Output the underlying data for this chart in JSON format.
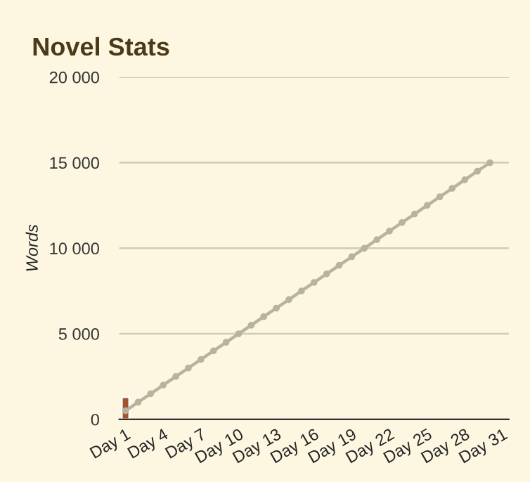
{
  "chart_data": {
    "type": "bar",
    "title": "Novel Stats",
    "ylabel": "Words",
    "categories": [
      "Day 1",
      null,
      null,
      "Day 4",
      null,
      null,
      "Day 7",
      null,
      null,
      "Day 10",
      null,
      null,
      "Day 13",
      null,
      null,
      "Day 16",
      null,
      null,
      "Day 19",
      null,
      null,
      "Day 22",
      null,
      null,
      "Day 25",
      null,
      null,
      "Day 28",
      null,
      null,
      "Day 31"
    ],
    "series": [
      {
        "color": "#a5532a",
        "values": [
          1300,
          null,
          null,
          null,
          null,
          null,
          null,
          null,
          null,
          null,
          null,
          null,
          null,
          null,
          null,
          null,
          null,
          null,
          null,
          null,
          null,
          null,
          null,
          null,
          null,
          null,
          null,
          null,
          null,
          null,
          null
        ]
      },
      {
        "type": "line",
        "color": "#b7b49c",
        "marker": "circle",
        "line_style": "solid",
        "values": [
          500,
          1000,
          1500,
          2000,
          2500,
          3000,
          3500,
          4000,
          4500,
          5000,
          5500,
          6000,
          6500,
          7000,
          7500,
          8000,
          8500,
          9000,
          9500,
          10000,
          10500,
          11000,
          11500,
          12000,
          12500,
          13000,
          13500,
          14000,
          14500,
          15000,
          null
        ]
      }
    ],
    "ylim": [
      0,
      20000
    ],
    "yticks": [
      {
        "value": 0,
        "label": "0"
      },
      {
        "value": 5000,
        "label": "5 000"
      },
      {
        "value": 10000,
        "label": "10 000"
      },
      {
        "value": 15000,
        "label": "15 000"
      },
      {
        "value": 20000,
        "label": "20 000"
      }
    ],
    "grid": "y",
    "legend": false
  }
}
